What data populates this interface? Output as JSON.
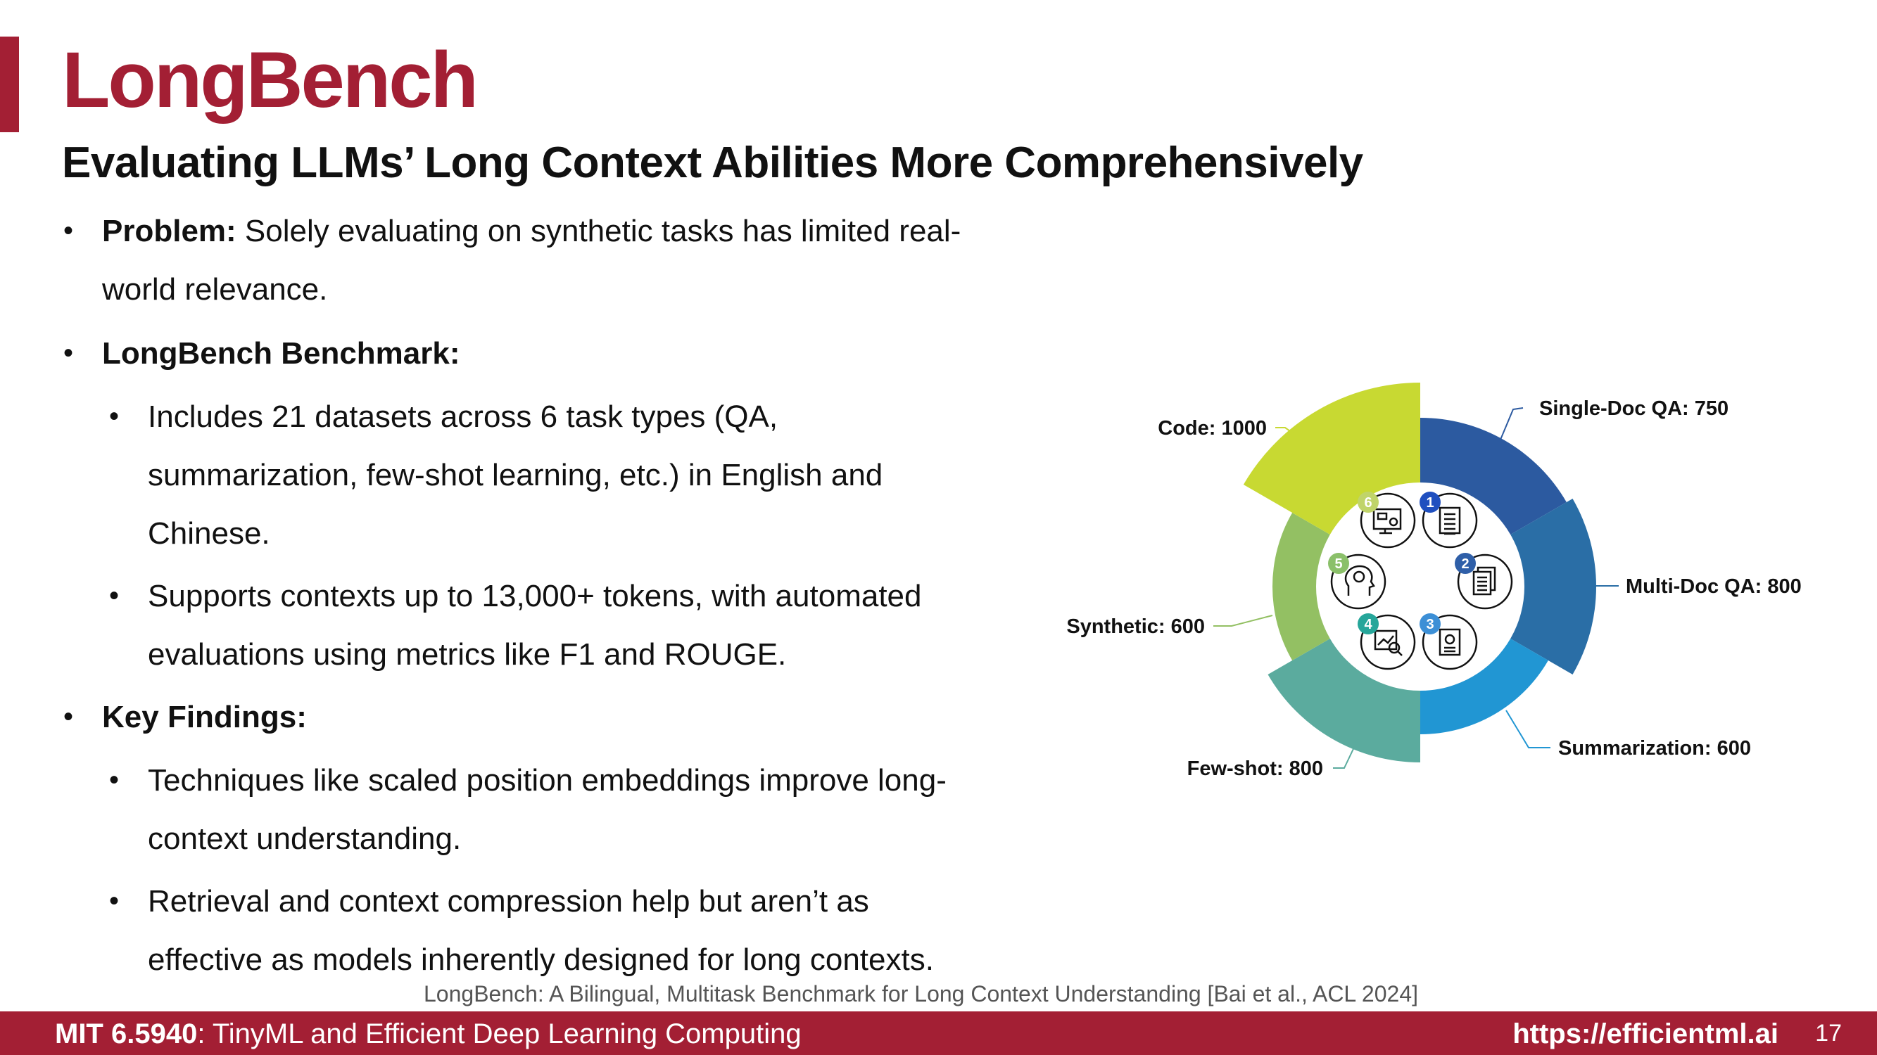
{
  "slide": {
    "title": "LongBench",
    "subtitle": "Evaluating LLMs’ Long Context Abilities More Comprehensively"
  },
  "bullets": {
    "problem_label": "Problem:",
    "problem_line1": " Solely evaluating on synthetic tasks has limited real-",
    "problem_line2": "world relevance.",
    "benchmark_label": "LongBench Benchmark:",
    "datasets_line1": "Includes 21 datasets across 6 task types (QA,",
    "datasets_line2": "summarization, few-shot learning, etc.) in English and",
    "datasets_line3": "Chinese.",
    "contexts_line1": "Supports contexts up to 13,000+ tokens, with automated",
    "contexts_line2": "evaluations using metrics like F1 and ROUGE.",
    "findings_label": "Key Findings:",
    "finding1_line1": "Techniques like scaled position embeddings improve long-",
    "finding1_line2": "context understanding.",
    "finding2_line1": "Retrieval and context compression help but aren’t as",
    "finding2_line2": "effective as models inherently designed for long contexts."
  },
  "chart_data": {
    "type": "pie",
    "style": "radial-donut",
    "categories": [
      "Single-Doc QA",
      "Multi-Doc QA",
      "Summarization",
      "Few-shot",
      "Synthetic",
      "Code"
    ],
    "values": [
      750,
      800,
      600,
      800,
      600,
      1000
    ],
    "labels": [
      "Single-Doc QA: 750",
      "Multi-Doc QA: 800",
      "Summarization: 600",
      "Few-shot: 800",
      "Synthetic: 600",
      "Code: 1000"
    ],
    "numbers": [
      "1",
      "2",
      "3",
      "4",
      "5",
      "6"
    ],
    "colors": [
      "#2c5aa0",
      "#2a6ea6",
      "#2196d3",
      "#5bab9e",
      "#93c063",
      "#c8d932"
    ],
    "number_badge_colors": [
      "#1f4fbf",
      "#2f5fa8",
      "#3c8fd6",
      "#26a69a",
      "#8bc06a",
      "#c0d46a"
    ],
    "icons": [
      "document-icon",
      "documents-stack-icon",
      "report-icon",
      "chart-magnifier-icon",
      "brain-head-icon",
      "code-screen-icon"
    ]
  },
  "citation": "LongBench: A Bilingual, Multitask Benchmark for Long Context Understanding [Bai et al., ACL 2024]",
  "footer": {
    "course_code": "MIT 6.5940",
    "course_name": ": TinyML and Efficient Deep Learning Computing",
    "url": "https://efficientml.ai",
    "page_number": "17"
  }
}
